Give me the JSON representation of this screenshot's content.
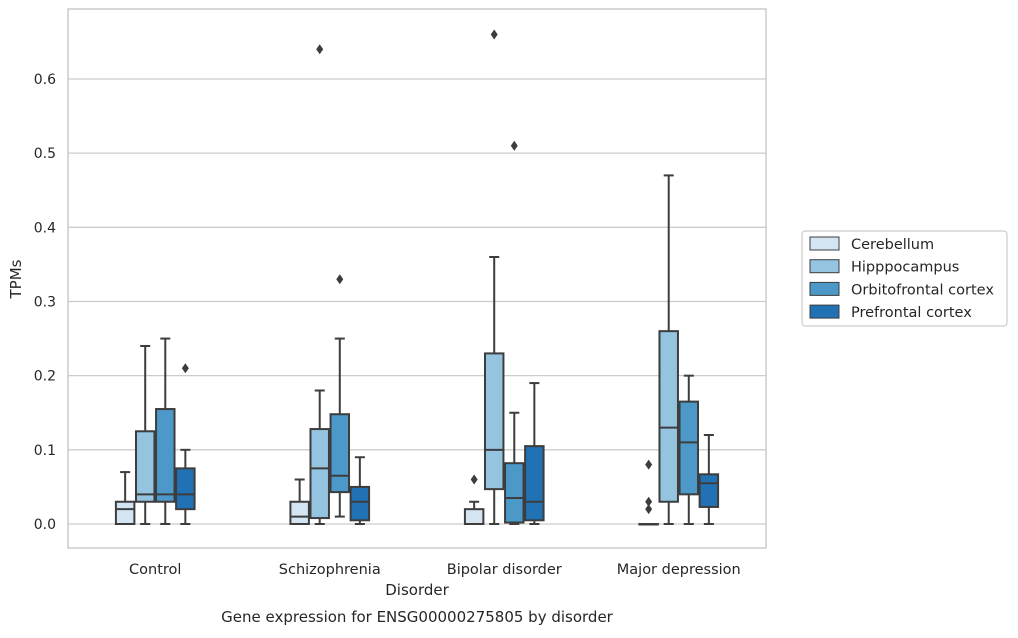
{
  "chart_data": {
    "type": "box",
    "title": "",
    "caption": "Gene expression for ENSG00000275805 by disorder",
    "xlabel": "Disorder",
    "ylabel": "TPMs",
    "ylim": [
      -0.032,
      0.69
    ],
    "yticks": [
      0.0,
      0.1,
      0.2,
      0.3,
      0.4,
      0.5,
      0.6
    ],
    "ytick_labels": [
      "0.0",
      "0.1",
      "0.2",
      "0.3",
      "0.4",
      "0.5",
      "0.6"
    ],
    "grid": "horizontal",
    "legend_position": "right",
    "categories": [
      "Control",
      "Schizophrenia",
      "Bipolar disorder",
      "Major depression"
    ],
    "series": [
      {
        "name": "Cerebellum",
        "color": "#d3e4f3",
        "boxes": [
          {
            "whisker_low": 0.0,
            "q1": 0.0,
            "median": 0.02,
            "q3": 0.03,
            "whisker_high": 0.07,
            "outliers": []
          },
          {
            "whisker_low": 0.0,
            "q1": 0.0,
            "median": 0.01,
            "q3": 0.03,
            "whisker_high": 0.06,
            "outliers": []
          },
          {
            "whisker_low": 0.0,
            "q1": 0.0,
            "median": 0.0,
            "q3": 0.02,
            "whisker_high": 0.03,
            "outliers": [
              0.06
            ]
          },
          {
            "whisker_low": 0.0,
            "q1": 0.0,
            "median": 0.0,
            "q3": 0.0,
            "whisker_high": 0.0,
            "outliers": [
              0.02,
              0.03,
              0.08
            ]
          }
        ]
      },
      {
        "name": "Hipppocampus",
        "color": "#94c4df",
        "boxes": [
          {
            "whisker_low": 0.0,
            "q1": 0.03,
            "median": 0.04,
            "q3": 0.125,
            "whisker_high": 0.24,
            "outliers": []
          },
          {
            "whisker_low": 0.0,
            "q1": 0.008,
            "median": 0.075,
            "q3": 0.128,
            "whisker_high": 0.18,
            "outliers": [
              0.64
            ]
          },
          {
            "whisker_low": 0.0,
            "q1": 0.047,
            "median": 0.1,
            "q3": 0.23,
            "whisker_high": 0.36,
            "outliers": [
              0.66
            ]
          },
          {
            "whisker_low": 0.0,
            "q1": 0.03,
            "median": 0.13,
            "q3": 0.26,
            "whisker_high": 0.47,
            "outliers": []
          }
        ]
      },
      {
        "name": "Orbitofrontal cortex",
        "color": "#4b98c9",
        "boxes": [
          {
            "whisker_low": 0.0,
            "q1": 0.03,
            "median": 0.04,
            "q3": 0.155,
            "whisker_high": 0.25,
            "outliers": []
          },
          {
            "whisker_low": 0.01,
            "q1": 0.043,
            "median": 0.065,
            "q3": 0.148,
            "whisker_high": 0.25,
            "outliers": [
              0.33
            ]
          },
          {
            "whisker_low": 0.0,
            "q1": 0.002,
            "median": 0.035,
            "q3": 0.082,
            "whisker_high": 0.15,
            "outliers": [
              0.51
            ]
          },
          {
            "whisker_low": 0.0,
            "q1": 0.04,
            "median": 0.11,
            "q3": 0.165,
            "whisker_high": 0.2,
            "outliers": []
          }
        ]
      },
      {
        "name": "Prefrontal cortex",
        "color": "#2171b5",
        "boxes": [
          {
            "whisker_low": 0.0,
            "q1": 0.02,
            "median": 0.04,
            "q3": 0.075,
            "whisker_high": 0.1,
            "outliers": [
              0.21
            ]
          },
          {
            "whisker_low": 0.0,
            "q1": 0.005,
            "median": 0.03,
            "q3": 0.05,
            "whisker_high": 0.09,
            "outliers": []
          },
          {
            "whisker_low": 0.0,
            "q1": 0.005,
            "median": 0.03,
            "q3": 0.105,
            "whisker_high": 0.19,
            "outliers": []
          },
          {
            "whisker_low": 0.0,
            "q1": 0.023,
            "median": 0.055,
            "q3": 0.067,
            "whisker_high": 0.12,
            "outliers": []
          }
        ]
      }
    ]
  }
}
